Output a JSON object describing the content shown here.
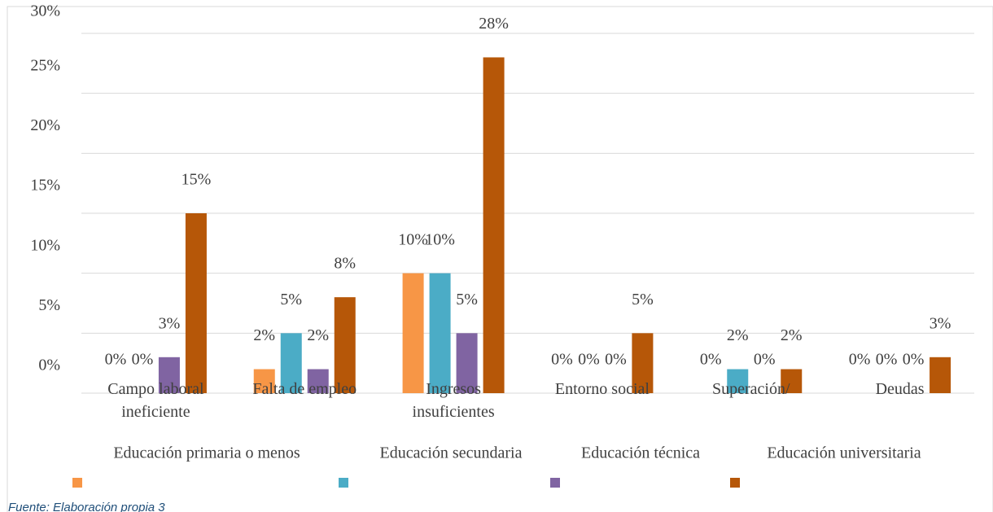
{
  "chart_data": {
    "type": "bar",
    "categories": [
      "Campo laboral ineficiente",
      "Falta de empleo",
      "Ingresos insuficientes",
      "Entorno social",
      "Superación/",
      "Deudas"
    ],
    "series": [
      {
        "name": "Educación primaria o menos",
        "color": "#f79646",
        "values": [
          0,
          2,
          10,
          0,
          0,
          0
        ],
        "value_labels": [
          "0%",
          "2%",
          "10%",
          "0%",
          "0%",
          "0%"
        ]
      },
      {
        "name": "Educación secundaria",
        "color": "#4bacc6",
        "values": [
          0,
          5,
          10,
          0,
          2,
          0
        ],
        "value_labels": [
          "0%",
          "5%",
          "10%",
          "0%",
          "2%",
          "0%"
        ]
      },
      {
        "name": "Educación técnica",
        "color": "#8064a2",
        "values": [
          3,
          2,
          5,
          0,
          0,
          0
        ],
        "value_labels": [
          "3%",
          "2%",
          "5%",
          "0%",
          "0%",
          "0%"
        ]
      },
      {
        "name": "Educación universitaria",
        "color": "#b65708",
        "values": [
          15,
          8,
          28,
          5,
          2,
          3
        ],
        "value_labels": [
          "15%",
          "8%",
          "28%",
          "5%",
          "2%",
          "3%"
        ]
      }
    ],
    "ylim": [
      0,
      30
    ],
    "yticks": [
      {
        "value": 0,
        "label": "0%"
      },
      {
        "value": 5,
        "label": "5%"
      },
      {
        "value": 10,
        "label": "10%"
      },
      {
        "value": 15,
        "label": "15%"
      },
      {
        "value": 20,
        "label": "20%"
      },
      {
        "value": 25,
        "label": "25%"
      },
      {
        "value": 30,
        "label": "30%"
      }
    ],
    "grid": true,
    "legend": "bottom",
    "source": "Fuente: Elaboración propia 3"
  }
}
